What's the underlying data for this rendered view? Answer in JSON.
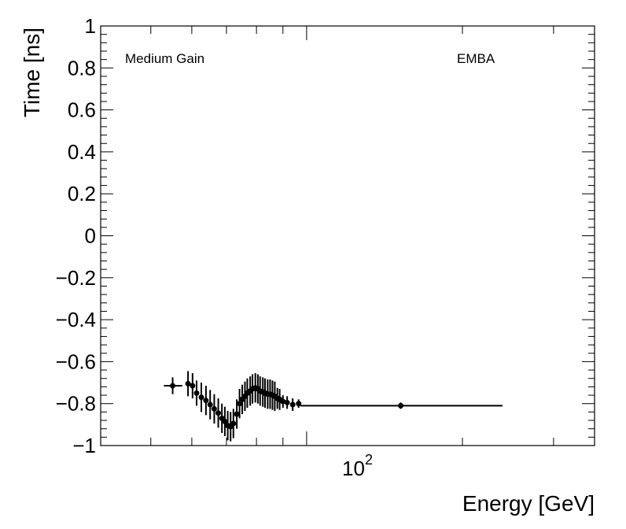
{
  "chart_data": {
    "type": "scatter",
    "xlabel": "Energy [GeV]",
    "ylabel": "Time [ns]",
    "x_scale": "log",
    "xlim": [
      40,
      360
    ],
    "ylim": [
      -1,
      1
    ],
    "y_ticks": [
      {
        "value": 1,
        "label": "1"
      },
      {
        "value": 0.8,
        "label": "0.8"
      },
      {
        "value": 0.6,
        "label": "0.6"
      },
      {
        "value": 0.4,
        "label": "0.4"
      },
      {
        "value": 0.2,
        "label": "0.2"
      },
      {
        "value": 0,
        "label": "0"
      },
      {
        "value": -0.2,
        "label": "−0.2"
      },
      {
        "value": -0.4,
        "label": "−0.4"
      },
      {
        "value": -0.6,
        "label": "−0.6"
      },
      {
        "value": -0.8,
        "label": "−0.8"
      },
      {
        "value": -1,
        "label": "−1"
      }
    ],
    "x_tick_label": {
      "base": "10",
      "exponent": "2",
      "value": 100
    },
    "annotations": {
      "left": "Medium Gain",
      "right": "EMBA"
    },
    "grid": false,
    "points": [
      {
        "x": 55.1,
        "y": -0.715,
        "xlo": 53.0,
        "xhi": 57.5,
        "yerr": 0.04
      },
      {
        "x": 59.0,
        "y": -0.705,
        "xlo": 58.4,
        "xhi": 59.5,
        "yerr": 0.06
      },
      {
        "x": 60.2,
        "y": -0.715,
        "xlo": 59.6,
        "xhi": 60.8,
        "yerr": 0.06
      },
      {
        "x": 61.3,
        "y": -0.75,
        "xlo": 60.8,
        "xhi": 61.9,
        "yerr": 0.06
      },
      {
        "x": 62.6,
        "y": -0.77,
        "xlo": 62.0,
        "xhi": 63.2,
        "yerr": 0.07
      },
      {
        "x": 63.9,
        "y": -0.785,
        "xlo": 63.3,
        "xhi": 64.5,
        "yerr": 0.07
      },
      {
        "x": 65.1,
        "y": -0.805,
        "xlo": 64.5,
        "xhi": 65.7,
        "yerr": 0.07
      },
      {
        "x": 66.3,
        "y": -0.825,
        "xlo": 65.7,
        "xhi": 66.9,
        "yerr": 0.07
      },
      {
        "x": 67.5,
        "y": -0.845,
        "xlo": 66.9,
        "xhi": 68.0,
        "yerr": 0.07
      },
      {
        "x": 68.6,
        "y": -0.87,
        "xlo": 68.0,
        "xhi": 69.1,
        "yerr": 0.07
      },
      {
        "x": 69.5,
        "y": -0.885,
        "xlo": 69.1,
        "xhi": 70.0,
        "yerr": 0.07
      },
      {
        "x": 70.4,
        "y": -0.905,
        "xlo": 70.0,
        "xhi": 70.8,
        "yerr": 0.07
      },
      {
        "x": 71.3,
        "y": -0.91,
        "xlo": 70.8,
        "xhi": 71.7,
        "yerr": 0.07
      },
      {
        "x": 72.2,
        "y": -0.895,
        "xlo": 71.8,
        "xhi": 72.6,
        "yerr": 0.07
      },
      {
        "x": 73.3,
        "y": -0.85,
        "xlo": 72.9,
        "xhi": 73.7,
        "yerr": 0.07
      },
      {
        "x": 74.2,
        "y": -0.8,
        "xlo": 73.8,
        "xhi": 74.7,
        "yerr": 0.07
      },
      {
        "x": 75.1,
        "y": -0.78,
        "xlo": 74.7,
        "xhi": 75.6,
        "yerr": 0.07
      },
      {
        "x": 76.0,
        "y": -0.765,
        "xlo": 75.6,
        "xhi": 76.4,
        "yerr": 0.07
      },
      {
        "x": 76.8,
        "y": -0.75,
        "xlo": 76.4,
        "xhi": 77.3,
        "yerr": 0.07
      },
      {
        "x": 77.8,
        "y": -0.74,
        "xlo": 77.3,
        "xhi": 78.2,
        "yerr": 0.07
      },
      {
        "x": 78.6,
        "y": -0.73,
        "xlo": 78.2,
        "xhi": 79.1,
        "yerr": 0.07
      },
      {
        "x": 79.6,
        "y": -0.725,
        "xlo": 79.1,
        "xhi": 80.0,
        "yerr": 0.07
      },
      {
        "x": 80.5,
        "y": -0.73,
        "xlo": 80.0,
        "xhi": 80.9,
        "yerr": 0.07
      },
      {
        "x": 81.3,
        "y": -0.74,
        "xlo": 80.9,
        "xhi": 81.8,
        "yerr": 0.07
      },
      {
        "x": 82.3,
        "y": -0.745,
        "xlo": 81.8,
        "xhi": 82.7,
        "yerr": 0.07
      },
      {
        "x": 83.1,
        "y": -0.75,
        "xlo": 82.7,
        "xhi": 83.6,
        "yerr": 0.07
      },
      {
        "x": 84.1,
        "y": -0.755,
        "xlo": 83.6,
        "xhi": 84.5,
        "yerr": 0.07
      },
      {
        "x": 85.0,
        "y": -0.755,
        "xlo": 84.5,
        "xhi": 85.4,
        "yerr": 0.07
      },
      {
        "x": 85.9,
        "y": -0.76,
        "xlo": 85.4,
        "xhi": 86.3,
        "yerr": 0.07
      },
      {
        "x": 86.8,
        "y": -0.765,
        "xlo": 86.3,
        "xhi": 87.3,
        "yerr": 0.07
      },
      {
        "x": 87.8,
        "y": -0.775,
        "xlo": 87.3,
        "xhi": 88.2,
        "yerr": 0.05
      },
      {
        "x": 88.7,
        "y": -0.78,
        "xlo": 88.2,
        "xhi": 89.2,
        "yerr": 0.05
      },
      {
        "x": 90.0,
        "y": -0.79,
        "xlo": 89.3,
        "xhi": 90.6,
        "yerr": 0.03
      },
      {
        "x": 91.7,
        "y": -0.795,
        "xlo": 91.0,
        "xhi": 92.5,
        "yerr": 0.03
      },
      {
        "x": 94.0,
        "y": -0.805,
        "xlo": 93.3,
        "xhi": 94.8,
        "yerr": 0.03
      },
      {
        "x": 96.5,
        "y": -0.8,
        "xlo": 95.7,
        "xhi": 97.3,
        "yerr": 0.02
      },
      {
        "x": 152.0,
        "y": -0.81,
        "xlo": 97.3,
        "xhi": 239.0,
        "yerr": 0.015
      }
    ]
  }
}
